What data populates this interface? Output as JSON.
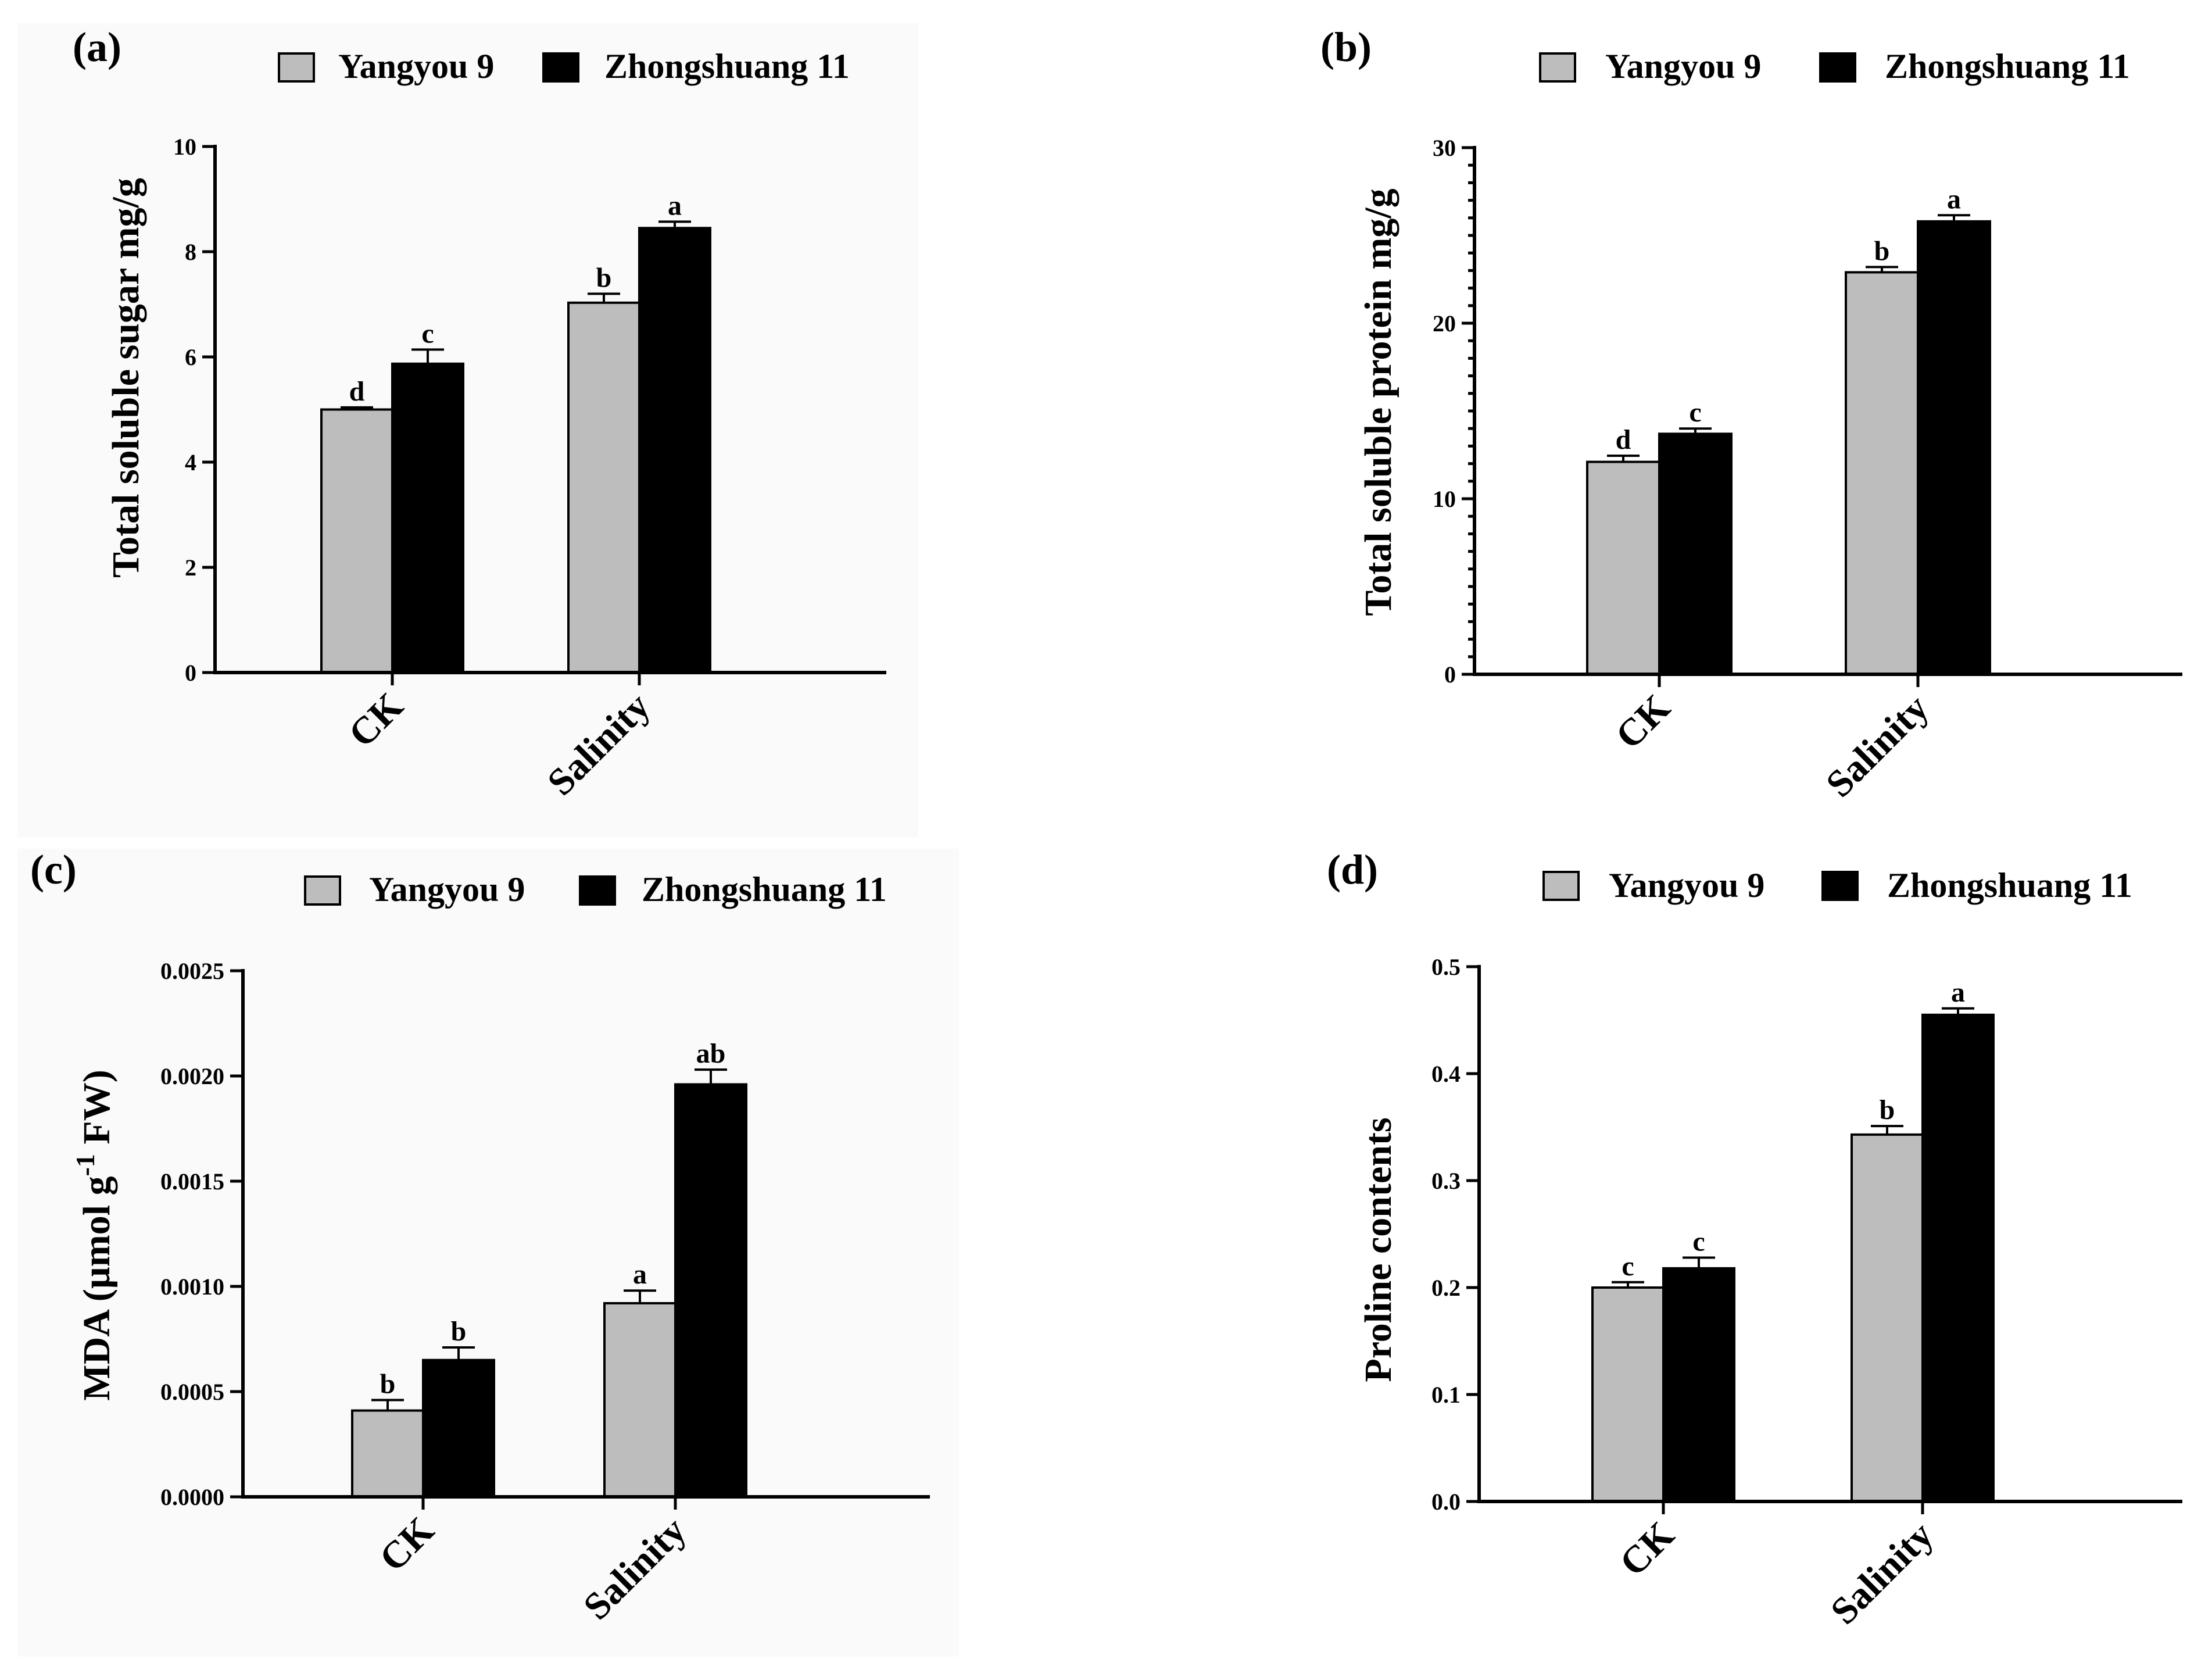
{
  "legend": {
    "series": [
      "Yangyou 9",
      "Zhongshuang 11"
    ],
    "colors": [
      "#bdbdbd",
      "#000000"
    ]
  },
  "chart_data": [
    {
      "panel": "(a)",
      "type": "bar",
      "categories": [
        "CK",
        "Salinity"
      ],
      "series": [
        {
          "name": "Yangyou 9",
          "values": [
            5.0,
            7.03
          ],
          "errors": [
            0.04,
            0.17
          ],
          "labels": [
            "d",
            "b"
          ]
        },
        {
          "name": "Zhongshuang 11",
          "values": [
            5.87,
            8.45
          ],
          "errors": [
            0.27,
            0.12
          ],
          "labels": [
            "c",
            "a"
          ]
        }
      ],
      "ylabel": "Total soluble sugar mg/g",
      "ylim": [
        0,
        10
      ],
      "yticks": [
        "0",
        "2",
        "4",
        "6",
        "8",
        "10"
      ],
      "minor_ticks": false,
      "legend_position": "top"
    },
    {
      "panel": "(b)",
      "type": "bar",
      "categories": [
        "CK",
        "Salinity"
      ],
      "series": [
        {
          "name": "Yangyou 9",
          "values": [
            12.1,
            22.9
          ],
          "errors": [
            0.35,
            0.3
          ],
          "labels": [
            "d",
            "b"
          ]
        },
        {
          "name": "Zhongshuang 11",
          "values": [
            13.7,
            25.8
          ],
          "errors": [
            0.3,
            0.35
          ],
          "labels": [
            "c",
            "a"
          ]
        }
      ],
      "ylabel": "Total soluble protein mg/g",
      "ylim": [
        0,
        30
      ],
      "yticks": [
        "0",
        "10",
        "20",
        "30"
      ],
      "minor_ticks": true,
      "legend_position": "top"
    },
    {
      "panel": "(c)",
      "type": "bar",
      "categories": [
        "CK",
        "Salinity"
      ],
      "series": [
        {
          "name": "Yangyou 9",
          "values": [
            0.00041,
            0.00092
          ],
          "errors": [
            5e-05,
            6e-05
          ],
          "labels": [
            "b",
            "a"
          ]
        },
        {
          "name": "Zhongshuang 11",
          "values": [
            0.00065,
            0.00196
          ],
          "errors": [
            6e-05,
            7e-05
          ],
          "labels": [
            "b",
            "ab"
          ]
        }
      ],
      "ylabel_main": "MDA (µmol g",
      "ylabel_sup": "-1",
      "ylabel_end": " FW)",
      "ylim": [
        0,
        0.0025
      ],
      "yticks": [
        "0.0000",
        "0.0005",
        "0.0010",
        "0.0015",
        "0.0020",
        "0.0025"
      ],
      "minor_ticks": false,
      "legend_position": "top"
    },
    {
      "panel": "(d)",
      "type": "bar",
      "categories": [
        "CK",
        "Salinity"
      ],
      "series": [
        {
          "name": "Yangyou 9",
          "values": [
            0.2,
            0.343
          ],
          "errors": [
            0.005,
            0.008
          ],
          "labels": [
            "c",
            "b"
          ]
        },
        {
          "name": "Zhongshuang 11",
          "values": [
            0.218,
            0.455
          ],
          "errors": [
            0.01,
            0.006
          ],
          "labels": [
            "c",
            "a"
          ]
        }
      ],
      "ylabel": "Proline contents",
      "ylim": [
        0,
        0.5
      ],
      "yticks": [
        "0.0",
        "0.1",
        "0.2",
        "0.3",
        "0.4",
        "0.5"
      ],
      "minor_ticks": false,
      "legend_position": "top"
    }
  ]
}
